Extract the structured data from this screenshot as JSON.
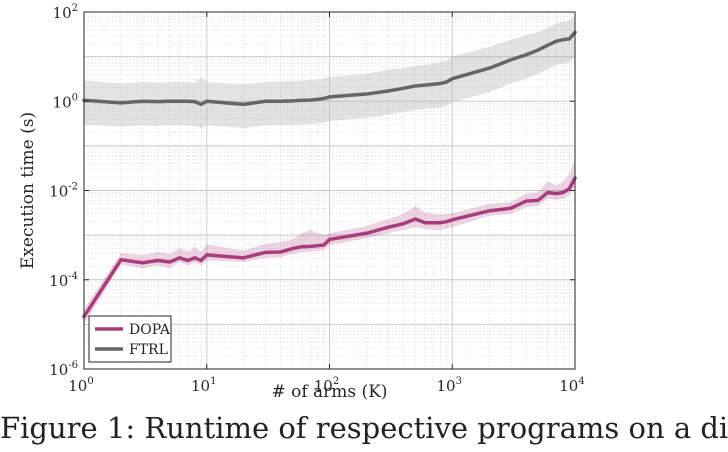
{
  "chart_data": {
    "type": "line",
    "xlabel": "# of arms (K)",
    "ylabel": "Execution time (s)",
    "xscale": "log",
    "yscale": "log",
    "xlim": [
      1,
      10000
    ],
    "ylim": [
      1e-06,
      100
    ],
    "grid": true,
    "minor_grid": true,
    "legend_position": "bottom-left",
    "x_ticks": [
      {
        "base": "10",
        "exp": "0"
      },
      {
        "base": "10",
        "exp": "1"
      },
      {
        "base": "10",
        "exp": "2"
      },
      {
        "base": "10",
        "exp": "3"
      },
      {
        "base": "10",
        "exp": "4"
      }
    ],
    "y_ticks": [
      {
        "base": "10",
        "exp": "-6"
      },
      {
        "base": "10",
        "exp": "-4"
      },
      {
        "base": "10",
        "exp": "-2"
      },
      {
        "base": "10",
        "exp": "0"
      },
      {
        "base": "10",
        "exp": "2"
      }
    ],
    "series": [
      {
        "name": "DOPA",
        "color": "#a83d7d",
        "band_color": "#a83d7d",
        "x": [
          1,
          2,
          3,
          4,
          5,
          6,
          7,
          8,
          9,
          10,
          20,
          30,
          40,
          50,
          60,
          70,
          80,
          90,
          100,
          200,
          300,
          400,
          500,
          600,
          700,
          800,
          900,
          1000,
          2000,
          3000,
          4000,
          5000,
          6000,
          7000,
          8000,
          9000,
          10000
        ],
        "y": [
          1.5e-05,
          0.00028,
          0.00024,
          0.00027,
          0.00025,
          0.00031,
          0.00027,
          0.00031,
          0.00027,
          0.00036,
          0.00031,
          0.00041,
          0.00042,
          0.0005,
          0.00055,
          0.00056,
          0.00058,
          0.0006,
          0.0008,
          0.0011,
          0.0015,
          0.0018,
          0.0023,
          0.0019,
          0.0019,
          0.0019,
          0.002,
          0.0022,
          0.0035,
          0.004,
          0.0058,
          0.006,
          0.009,
          0.0085,
          0.009,
          0.011,
          0.019
        ],
        "y_low": [
          1e-05,
          0.00022,
          0.00018,
          0.00021,
          0.00018,
          0.00025,
          0.00021,
          0.00024,
          0.00021,
          0.00027,
          0.00025,
          0.00031,
          0.00032,
          0.00038,
          0.00042,
          0.00043,
          0.00044,
          0.00046,
          0.0006,
          0.00085,
          0.0011,
          0.0013,
          0.0015,
          0.0014,
          0.0013,
          0.0013,
          0.0014,
          0.0015,
          0.0027,
          0.003,
          0.0042,
          0.0045,
          0.0065,
          0.0062,
          0.0066,
          0.0078,
          0.012
        ],
        "y_high": [
          2.2e-05,
          0.0004,
          0.00036,
          0.00042,
          0.00038,
          0.00052,
          0.00042,
          0.00055,
          0.00041,
          0.00062,
          0.00045,
          0.00064,
          0.0007,
          0.0008,
          0.0011,
          0.0013,
          0.0011,
          0.001,
          0.0011,
          0.0016,
          0.0023,
          0.003,
          0.0045,
          0.0032,
          0.003,
          0.0029,
          0.003,
          0.0031,
          0.005,
          0.0055,
          0.0085,
          0.009,
          0.016,
          0.013,
          0.016,
          0.024,
          0.05
        ]
      },
      {
        "name": "FTRL",
        "color": "#666666",
        "band_color": "#b0b0b0",
        "x": [
          1,
          2,
          3,
          4,
          5,
          6,
          7,
          8,
          9,
          10,
          20,
          30,
          40,
          50,
          60,
          70,
          80,
          90,
          100,
          200,
          300,
          400,
          500,
          600,
          700,
          800,
          900,
          1000,
          2000,
          3000,
          4000,
          5000,
          6000,
          7000,
          8000,
          9000,
          10000
        ],
        "y": [
          1.05,
          0.92,
          1.0,
          0.98,
          1.0,
          1.0,
          1.0,
          0.98,
          0.85,
          1.0,
          0.85,
          1.0,
          1.0,
          1.02,
          1.05,
          1.06,
          1.1,
          1.15,
          1.25,
          1.45,
          1.7,
          1.95,
          2.2,
          2.3,
          2.4,
          2.5,
          2.7,
          3.2,
          5.5,
          8.5,
          11,
          14,
          18,
          22,
          24,
          25,
          35
        ],
        "y_low": [
          0.3,
          0.27,
          0.29,
          0.28,
          0.29,
          0.29,
          0.29,
          0.28,
          0.25,
          0.29,
          0.25,
          0.29,
          0.29,
          0.3,
          0.3,
          0.31,
          0.32,
          0.33,
          0.36,
          0.42,
          0.5,
          0.57,
          0.65,
          0.68,
          0.7,
          0.73,
          0.79,
          0.95,
          1.6,
          2.5,
          3.2,
          4.1,
          5.3,
          6.5,
          7.0,
          7.3,
          10.0
        ],
        "y_high": [
          2.9,
          2.5,
          2.7,
          2.6,
          2.7,
          2.7,
          2.7,
          2.6,
          3.5,
          2.7,
          2.4,
          2.7,
          2.8,
          2.8,
          2.9,
          3.0,
          3.1,
          3.2,
          3.5,
          4.2,
          5.0,
          5.6,
          6.2,
          6.5,
          7.0,
          7.4,
          8.2,
          10.0,
          16.5,
          24,
          30,
          36,
          44,
          55,
          60,
          65,
          80
        ]
      }
    ]
  },
  "caption": "Figure 1: Runtime of respective programs on a di"
}
